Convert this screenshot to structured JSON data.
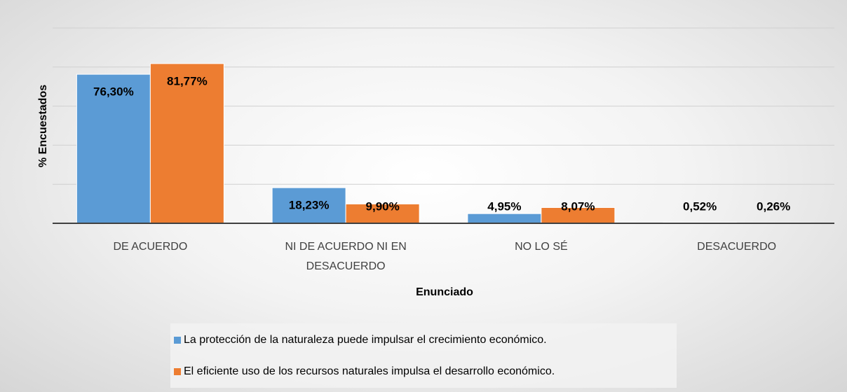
{
  "chart_data": {
    "type": "bar",
    "x_label": "Enunciado",
    "y_label": "% Encuestados",
    "categories": [
      "DE ACUERDO",
      "NI DE ACUERDO NI EN DESACUERDO",
      "NO LO SÉ",
      "DESACUERDO"
    ],
    "series": [
      {
        "name": "La protección de la naturaleza puede impulsar el crecimiento económico.",
        "color": "#5b9bd5",
        "values": [
          76.3,
          18.23,
          4.95,
          0.52
        ],
        "value_labels": [
          "76,30%",
          "18,23%",
          "4,95%",
          "0,52%"
        ]
      },
      {
        "name": "El eficiente uso de los recursos naturales impulsa el desarrollo económico.",
        "color": "#ed7d31",
        "values": [
          81.77,
          9.9,
          8.07,
          0.26
        ],
        "value_labels": [
          "81,77%",
          "9,90%",
          "8,07%",
          "0,26%"
        ]
      }
    ],
    "ylim": [
      0,
      100
    ],
    "yticks": [
      0,
      20,
      40,
      60,
      80,
      100
    ],
    "grid": true
  }
}
